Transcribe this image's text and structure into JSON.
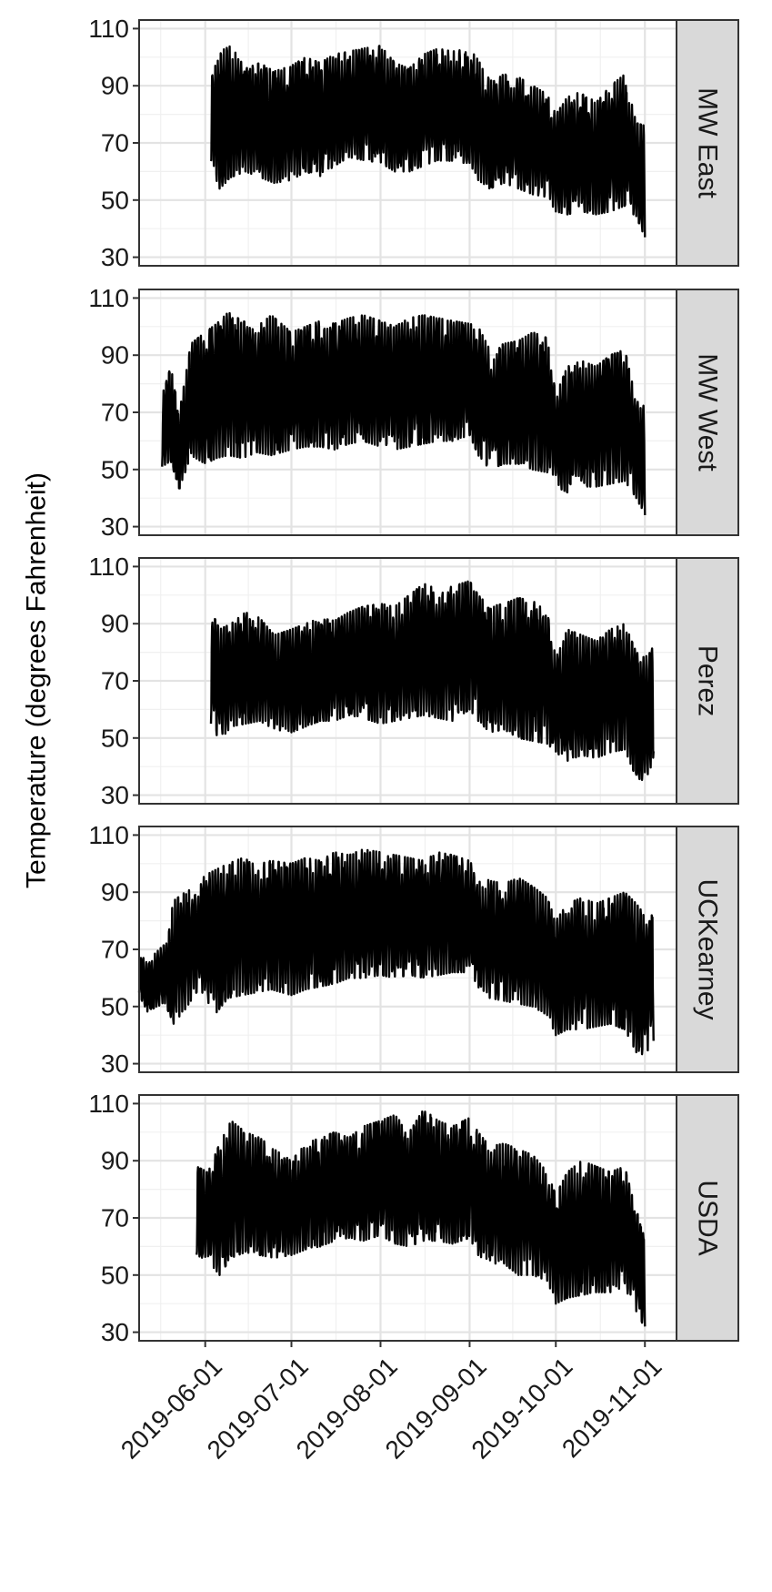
{
  "chart_data": {
    "type": "line",
    "title": "",
    "xlabel": "",
    "ylabel": "Temperature (degrees Fahrenheit)",
    "x_ticks": [
      "2019-06-01",
      "2019-07-01",
      "2019-08-01",
      "2019-09-01",
      "2019-10-01",
      "2019-11-01"
    ],
    "xlim": [
      "2019-05-09",
      "2019-11-12"
    ],
    "y_ticks": [
      30,
      50,
      70,
      90,
      110
    ],
    "ylim": [
      27,
      113
    ],
    "grid": true,
    "facets": [
      "MW East",
      "MW West",
      "Perez",
      "UCKearney",
      "USDA"
    ],
    "series": [
      {
        "name": "MW East",
        "x": [
          "2019-06-03",
          "2019-06-06",
          "2019-06-10",
          "2019-06-15",
          "2019-06-20",
          "2019-06-25",
          "2019-07-01",
          "2019-07-06",
          "2019-07-11",
          "2019-07-16",
          "2019-07-21",
          "2019-07-26",
          "2019-08-01",
          "2019-08-06",
          "2019-08-11",
          "2019-08-16",
          "2019-08-21",
          "2019-08-26",
          "2019-09-01",
          "2019-09-04",
          "2019-09-08",
          "2019-09-13",
          "2019-09-18",
          "2019-09-23",
          "2019-09-28",
          "2019-10-01",
          "2019-10-05",
          "2019-10-10",
          "2019-10-15",
          "2019-10-20",
          "2019-10-25",
          "2019-10-29",
          "2019-11-01"
        ],
        "high": [
          92,
          102,
          104,
          96,
          98,
          95,
          97,
          100,
          98,
          101,
          102,
          103,
          104,
          98,
          96,
          101,
          103,
          102,
          103,
          99,
          92,
          94,
          93,
          90,
          87,
          80,
          86,
          88,
          84,
          90,
          94,
          77,
          76
        ],
        "low": [
          62,
          54,
          58,
          60,
          58,
          56,
          57,
          60,
          58,
          62,
          65,
          64,
          63,
          60,
          60,
          62,
          64,
          63,
          63,
          57,
          54,
          56,
          54,
          52,
          51,
          46,
          45,
          46,
          45,
          46,
          48,
          44,
          37
        ]
      },
      {
        "name": "MW West",
        "x": [
          "2019-05-17",
          "2019-05-20",
          "2019-05-23",
          "2019-05-27",
          "2019-06-01",
          "2019-06-05",
          "2019-06-09",
          "2019-06-14",
          "2019-06-19",
          "2019-06-24",
          "2019-07-01",
          "2019-07-06",
          "2019-07-11",
          "2019-07-16",
          "2019-07-21",
          "2019-07-26",
          "2019-08-01",
          "2019-08-06",
          "2019-08-11",
          "2019-08-16",
          "2019-08-21",
          "2019-08-26",
          "2019-09-01",
          "2019-09-04",
          "2019-09-08",
          "2019-09-13",
          "2019-09-18",
          "2019-09-23",
          "2019-09-28",
          "2019-10-01",
          "2019-10-05",
          "2019-10-10",
          "2019-10-15",
          "2019-10-20",
          "2019-10-25",
          "2019-10-29",
          "2019-11-01"
        ],
        "high": [
          76,
          86,
          70,
          94,
          98,
          101,
          105,
          102,
          100,
          104,
          98,
          100,
          102,
          101,
          103,
          104,
          102,
          100,
          103,
          104,
          103,
          102,
          101,
          100,
          92,
          94,
          95,
          98,
          96,
          76,
          86,
          88,
          86,
          90,
          92,
          74,
          72
        ],
        "low": [
          51,
          53,
          43,
          55,
          52,
          54,
          55,
          54,
          56,
          55,
          57,
          58,
          58,
          57,
          59,
          60,
          58,
          57,
          58,
          59,
          60,
          60,
          62,
          55,
          50,
          52,
          52,
          50,
          49,
          44,
          42,
          44,
          44,
          45,
          46,
          40,
          34
        ]
      },
      {
        "name": "Perez",
        "x": [
          "2019-06-03",
          "2019-06-06",
          "2019-06-10",
          "2019-06-15",
          "2019-06-20",
          "2019-06-25",
          "2019-07-01",
          "2019-07-06",
          "2019-07-11",
          "2019-07-16",
          "2019-07-21",
          "2019-07-26",
          "2019-08-01",
          "2019-08-06",
          "2019-08-11",
          "2019-08-16",
          "2019-08-21",
          "2019-08-26",
          "2019-09-01",
          "2019-09-04",
          "2019-09-08",
          "2019-09-13",
          "2019-09-18",
          "2019-09-23",
          "2019-09-28",
          "2019-10-01",
          "2019-10-05",
          "2019-10-10",
          "2019-10-15",
          "2019-10-20",
          "2019-10-25",
          "2019-10-29",
          "2019-11-01",
          "2019-11-04"
        ],
        "high": [
          95,
          88,
          90,
          94,
          92,
          86,
          88,
          90,
          92,
          91,
          94,
          96,
          97,
          96,
          100,
          104,
          102,
          103,
          105,
          100,
          96,
          97,
          99,
          98,
          94,
          78,
          88,
          86,
          84,
          88,
          90,
          80,
          78,
          82
        ],
        "low": [
          55,
          49,
          54,
          55,
          56,
          53,
          52,
          54,
          56,
          56,
          58,
          57,
          55,
          56,
          57,
          58,
          57,
          56,
          60,
          56,
          52,
          53,
          50,
          49,
          48,
          45,
          42,
          44,
          43,
          45,
          46,
          36,
          35,
          42
        ]
      },
      {
        "name": "UCKearney",
        "x": [
          "2019-05-09",
          "2019-05-12",
          "2019-05-15",
          "2019-05-18",
          "2019-05-21",
          "2019-05-25",
          "2019-05-29",
          "2019-06-01",
          "2019-06-05",
          "2019-06-09",
          "2019-06-14",
          "2019-06-19",
          "2019-06-24",
          "2019-07-01",
          "2019-07-06",
          "2019-07-11",
          "2019-07-16",
          "2019-07-21",
          "2019-07-26",
          "2019-08-01",
          "2019-08-06",
          "2019-08-11",
          "2019-08-16",
          "2019-08-21",
          "2019-08-26",
          "2019-09-01",
          "2019-09-04",
          "2019-09-08",
          "2019-09-13",
          "2019-09-18",
          "2019-09-23",
          "2019-09-28",
          "2019-10-01",
          "2019-10-05",
          "2019-10-10",
          "2019-10-15",
          "2019-10-20",
          "2019-10-25",
          "2019-10-29",
          "2019-11-01",
          "2019-11-04"
        ],
        "high": [
          68,
          66,
          69,
          72,
          87,
          90,
          92,
          96,
          98,
          100,
          102,
          100,
          101,
          100,
          102,
          101,
          104,
          103,
          105,
          104,
          103,
          102,
          101,
          104,
          103,
          101,
          96,
          94,
          93,
          95,
          92,
          88,
          80,
          86,
          88,
          86,
          88,
          90,
          86,
          82,
          88
        ],
        "low": [
          54,
          48,
          50,
          51,
          44,
          49,
          55,
          52,
          48,
          53,
          54,
          55,
          56,
          54,
          56,
          57,
          58,
          60,
          60,
          61,
          60,
          61,
          60,
          61,
          62,
          62,
          56,
          53,
          52,
          51,
          50,
          47,
          40,
          42,
          42,
          43,
          44,
          42,
          34,
          33,
          38
        ]
      },
      {
        "name": "USDA",
        "x": [
          "2019-05-29",
          "2019-06-02",
          "2019-06-06",
          "2019-06-10",
          "2019-06-15",
          "2019-06-20",
          "2019-06-25",
          "2019-07-01",
          "2019-07-06",
          "2019-07-11",
          "2019-07-16",
          "2019-07-21",
          "2019-07-26",
          "2019-08-01",
          "2019-08-06",
          "2019-08-11",
          "2019-08-16",
          "2019-08-21",
          "2019-08-26",
          "2019-09-01",
          "2019-09-04",
          "2019-09-08",
          "2019-09-13",
          "2019-09-18",
          "2019-09-23",
          "2019-09-28",
          "2019-10-01",
          "2019-10-05",
          "2019-10-10",
          "2019-10-15",
          "2019-10-20",
          "2019-10-25",
          "2019-10-29",
          "2019-11-01"
        ],
        "high": [
          88,
          86,
          96,
          104,
          100,
          98,
          94,
          90,
          96,
          98,
          100,
          98,
          102,
          104,
          106,
          100,
          108,
          104,
          102,
          105,
          100,
          95,
          96,
          94,
          92,
          86,
          78,
          86,
          90,
          88,
          86,
          88,
          72,
          68
        ],
        "low": [
          57,
          55,
          50,
          56,
          58,
          57,
          56,
          57,
          59,
          60,
          62,
          63,
          62,
          64,
          61,
          60,
          62,
          62,
          61,
          63,
          57,
          54,
          54,
          50,
          50,
          48,
          40,
          42,
          43,
          44,
          44,
          46,
          36,
          32
        ]
      }
    ]
  }
}
